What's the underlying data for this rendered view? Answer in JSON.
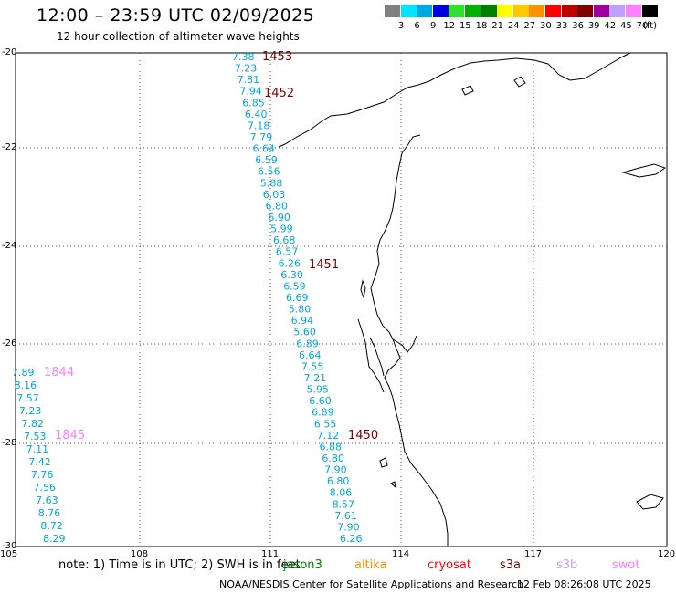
{
  "title": "12:00 – 23:59 UTC 02/09/2025",
  "subtitle": "12 hour collection of altimeter wave heights",
  "legend": {
    "unit": "(ft)",
    "bins": [
      {
        "label": "3",
        "color": "#808080"
      },
      {
        "label": "6",
        "color": "#00e5ff"
      },
      {
        "label": "9",
        "color": "#00a8e0"
      },
      {
        "label": "12",
        "color": "#0000e0"
      },
      {
        "label": "15",
        "color": "#30e030"
      },
      {
        "label": "18",
        "color": "#00b000"
      },
      {
        "label": "21",
        "color": "#008000"
      },
      {
        "label": "24",
        "color": "#ffff00"
      },
      {
        "label": "27",
        "color": "#ffc800"
      },
      {
        "label": "30",
        "color": "#ff9000"
      },
      {
        "label": "33",
        "color": "#ff0000"
      },
      {
        "label": "36",
        "color": "#c00000"
      },
      {
        "label": "39",
        "color": "#800000"
      },
      {
        "label": "42",
        "color": "#a000a0"
      },
      {
        "label": "45",
        "color": "#c0a0ff"
      },
      {
        "label": "70",
        "color": "#ff80ff"
      },
      {
        "label": "",
        "color": "#000000"
      }
    ]
  },
  "axes": {
    "lon_ticks": [
      "105",
      "108",
      "111",
      "114",
      "117",
      "120"
    ],
    "lat_ticks": [
      "-20",
      "-22",
      "-24",
      "-26",
      "-28",
      "-30"
    ]
  },
  "tracks": [
    {
      "pass_labels": [
        {
          "text": "1453",
          "color": "#800000"
        },
        {
          "text": "1452",
          "color": "#800000"
        },
        {
          "text": "1451",
          "color": "#800000"
        },
        {
          "text": "1450",
          "color": "#800000"
        }
      ],
      "color": "#00a8e0",
      "values": [
        "7.38",
        "7.23",
        "7.81",
        "7.94",
        "6.85",
        "6.40",
        "7.18",
        "7.79",
        "6.64",
        "6.59",
        "6.56",
        "5.88",
        "6.03",
        "6.80",
        "6.90",
        "5.99",
        "6.68",
        "6.57",
        "6.26",
        "6.30",
        "6.59",
        "6.69",
        "5.80",
        "6.94",
        "5.60",
        "6.89",
        "6.64",
        "7.55",
        "7.21",
        "5.95",
        "6.60",
        "6.89",
        "6.55",
        "7.12",
        "6.88",
        "6.80",
        "7.90",
        "6.80",
        "8.06",
        "8.57",
        "7.61",
        "7.90",
        "6.26"
      ]
    },
    {
      "pass_labels": [
        {
          "text": "1844",
          "color": "#ff80ff"
        },
        {
          "text": "1845",
          "color": "#ff80ff"
        }
      ],
      "color": "#00a8e0",
      "values": [
        "7.89",
        "8.16",
        "7.57",
        "7.23",
        "7.82",
        "7.53",
        "7.11",
        "7.42",
        "7.76",
        "7.56",
        "7.63",
        "8.76",
        "8.72",
        "8.29"
      ]
    }
  ],
  "footer": {
    "note": "note:  1) Time is in UTC; 2) SWH is in feet",
    "satellites": [
      {
        "name": "jason3",
        "color": "#008000"
      },
      {
        "name": "altika",
        "color": "#ff9000"
      },
      {
        "name": "cryosat",
        "color": "#ff0000"
      },
      {
        "name": "s3a",
        "color": "#800000"
      },
      {
        "name": "s3b",
        "color": "#c0a0ff"
      },
      {
        "name": "swot",
        "color": "#ff80ff"
      }
    ],
    "credit": "NOAA/NESDIS Center for Satellite Applications and Research",
    "timestamp": "12 Feb 08:26:08 UTC 2025"
  }
}
